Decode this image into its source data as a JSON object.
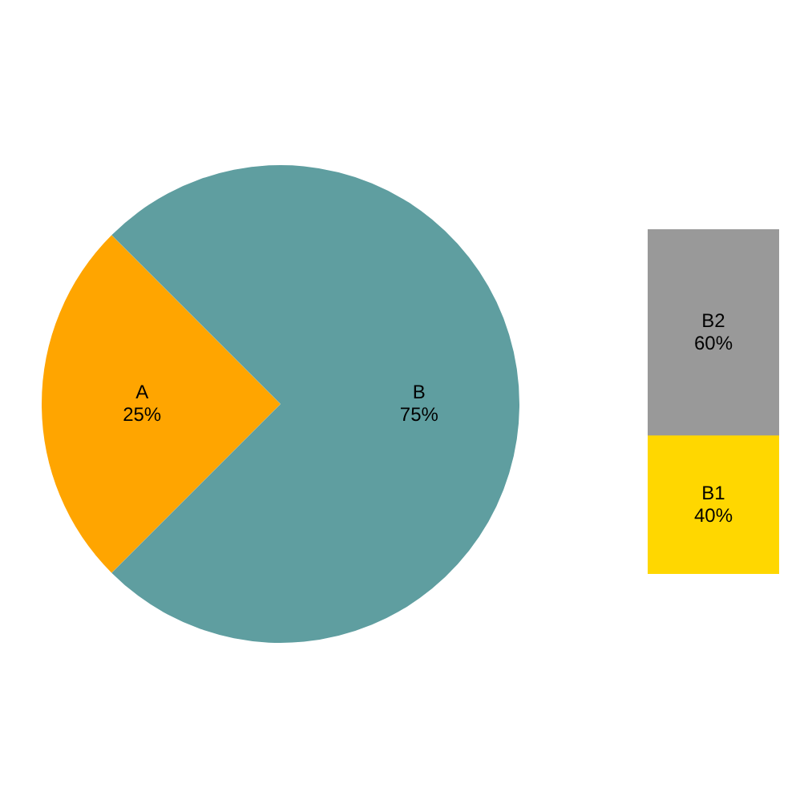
{
  "chart_data": [
    {
      "type": "pie",
      "categories": [
        "A",
        "B"
      ],
      "values": [
        25,
        75
      ],
      "colors": [
        "#ffa500",
        "#5f9ea0"
      ],
      "value_labels": [
        "25%",
        "75%"
      ]
    },
    {
      "type": "bar",
      "stacked": true,
      "categories": [
        null
      ],
      "series": [
        {
          "name": "B1",
          "color": "#ffd700",
          "values": [
            40
          ],
          "value_labels": [
            "40%"
          ]
        },
        {
          "name": "B2",
          "color": "#999999",
          "values": [
            60
          ],
          "value_labels": [
            "60%"
          ]
        }
      ]
    }
  ]
}
